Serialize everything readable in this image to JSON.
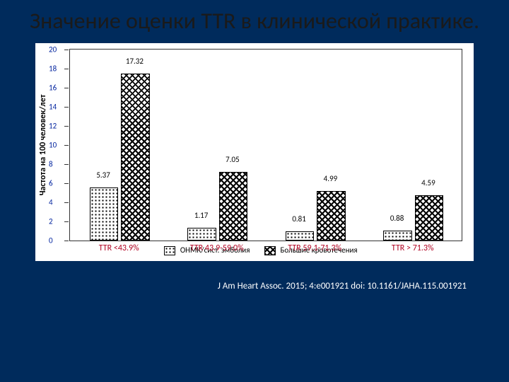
{
  "title": "Значение оценки TTR в клинической практике.",
  "citation": "J Am Heart Assoc. 2015; 4:e001921 doi: 10.1161/JAHA.115.001921",
  "chart": {
    "type": "bar",
    "ylabel": "Частота на 100 человек/лет",
    "ylim": [
      0,
      20
    ],
    "ytick_step": 2,
    "ytick_color": "#00229e",
    "xlabel_color": "#b00020",
    "background_color": "#ffffff",
    "bar_width_pct": 7,
    "group_gap_pct": 25,
    "groups": [
      {
        "label": "TTR <43.9%",
        "a": 5.37,
        "b": 17.32
      },
      {
        "label": "TTR 43.9-59.0%",
        "a": 1.17,
        "b": 7.05
      },
      {
        "label": "TTR 59.1-71.3%",
        "a": 0.81,
        "b": 4.99
      },
      {
        "label": "TTR > 71.3%",
        "a": 0.88,
        "b": 4.59
      }
    ],
    "series": [
      {
        "key": "a",
        "pattern": "dotted",
        "label": "ОНМК/сист. эмболия"
      },
      {
        "key": "b",
        "pattern": "checker",
        "label": "Большие кровотечения"
      }
    ]
  }
}
